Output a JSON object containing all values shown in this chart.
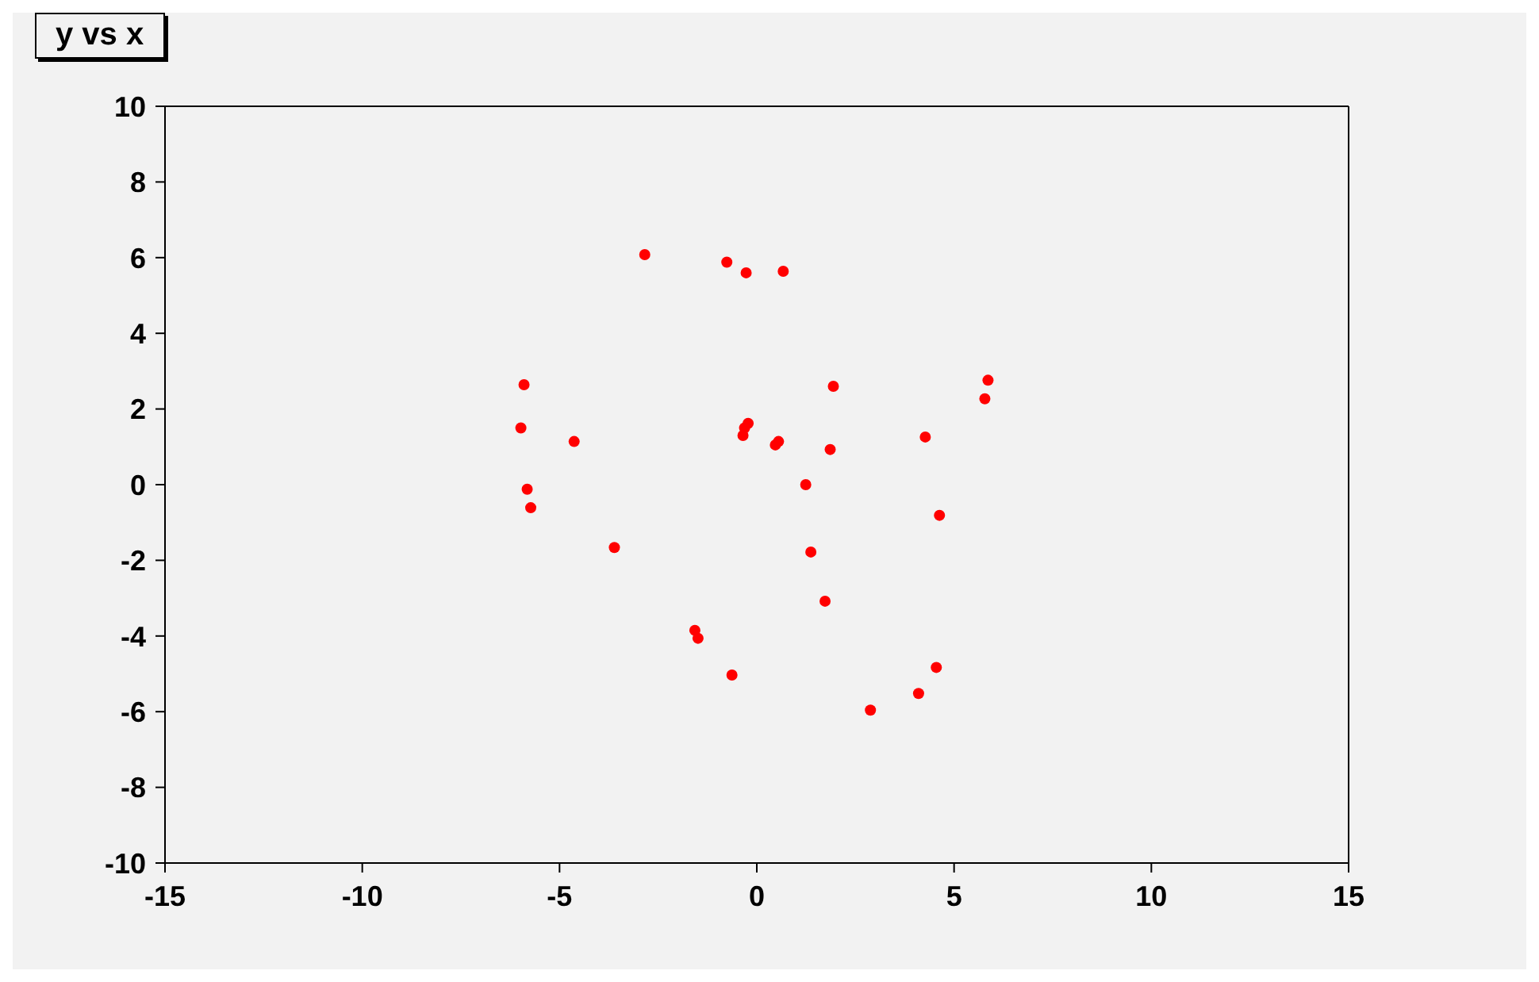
{
  "chart_data": {
    "type": "scatter",
    "title": "y vs x",
    "marker": "circle",
    "grid": false,
    "xlim": [
      -15,
      15
    ],
    "xticks": [
      -15,
      -10,
      -5,
      0,
      5,
      10,
      15
    ],
    "ylim": [
      -10,
      10
    ],
    "yticks": [
      -10,
      -8,
      -6,
      -4,
      -2,
      0,
      2,
      4,
      6,
      8,
      10
    ],
    "series": [
      {
        "color": "#ff0000",
        "x": [
          -2.84,
          -0.76,
          -0.27,
          0.67,
          -5.9,
          -5.98,
          -4.63,
          -5.82,
          -5.73,
          -3.61,
          -0.22,
          -0.35,
          -0.31,
          0.47,
          0.55,
          1.94,
          1.86,
          1.24,
          1.37,
          1.73,
          4.27,
          4.63,
          5.86,
          5.78,
          -1.57,
          -1.49,
          -0.63,
          2.88,
          4.1,
          4.55
        ],
        "values": [
          6.08,
          5.88,
          5.6,
          5.64,
          2.64,
          1.5,
          1.14,
          -0.12,
          -0.61,
          -1.66,
          1.62,
          1.3,
          1.5,
          1.05,
          1.14,
          2.6,
          0.93,
          0.0,
          -1.78,
          -3.08,
          1.26,
          -0.81,
          2.76,
          2.27,
          -3.85,
          -4.06,
          -5.03,
          -5.96,
          -5.52,
          -4.83
        ]
      }
    ]
  }
}
